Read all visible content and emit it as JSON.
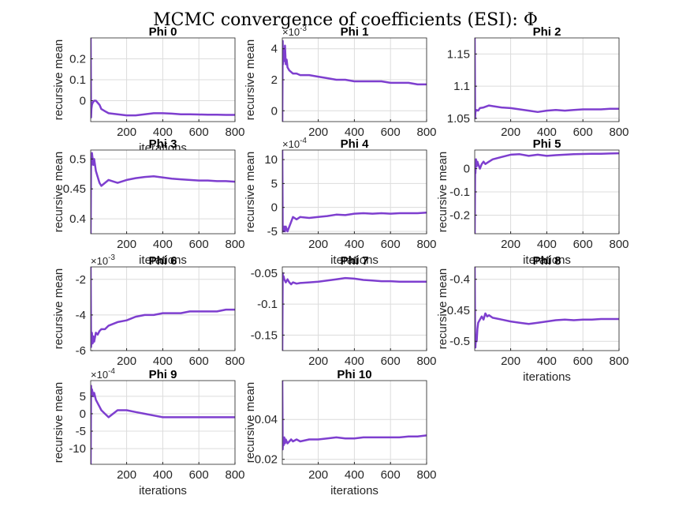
{
  "title": "MCMC convergence of coefficients (ESI): Φ",
  "series_color": "#7e3fcf",
  "chart_data": [
    {
      "type": "line",
      "title": "Phi 0",
      "xlabel": "iterations",
      "ylabel": "recursive mean",
      "xlim": [
        1,
        800
      ],
      "ylim": [
        -0.1,
        0.3
      ],
      "yticks": [
        0,
        0.1,
        0.2
      ],
      "ytick_labels": [
        "0",
        "0.1",
        "0.2"
      ],
      "xticks": [
        200,
        400,
        600,
        800
      ],
      "xtick_labels": [
        "200",
        "400",
        "600",
        "800"
      ],
      "exponent": "",
      "x": [
        1,
        3,
        5,
        8,
        12,
        20,
        30,
        50,
        60,
        80,
        100,
        150,
        200,
        250,
        300,
        350,
        400,
        450,
        500,
        550,
        600,
        650,
        700,
        750,
        800
      ],
      "y": [
        0.3,
        -0.08,
        -0.04,
        -0.02,
        -0.01,
        0.0,
        0.0,
        -0.02,
        -0.04,
        -0.05,
        -0.06,
        -0.065,
        -0.07,
        -0.07,
        -0.065,
        -0.06,
        -0.06,
        -0.062,
        -0.065,
        -0.065,
        -0.066,
        -0.067,
        -0.067,
        -0.068,
        -0.068
      ]
    },
    {
      "type": "line",
      "title": "Phi 1",
      "xlabel": "",
      "ylabel": "recursive mean",
      "xlim": [
        1,
        800
      ],
      "ylim": [
        -0.0007,
        0.0047
      ],
      "yticks": [
        0,
        0.002,
        0.004
      ],
      "ytick_labels": [
        "0",
        "2",
        "4"
      ],
      "xticks": [
        200,
        400,
        600,
        800
      ],
      "xtick_labels": [
        "200",
        "400",
        "600",
        "800"
      ],
      "exponent": "-3",
      "x": [
        1,
        3,
        5,
        8,
        12,
        16,
        20,
        25,
        30,
        40,
        50,
        60,
        80,
        100,
        150,
        200,
        250,
        300,
        350,
        400,
        450,
        500,
        550,
        600,
        650,
        700,
        750,
        800
      ],
      "y": [
        -0.0007,
        0.0045,
        0.003,
        0.004,
        0.0032,
        0.0042,
        0.003,
        0.0033,
        0.0028,
        0.0026,
        0.0025,
        0.0024,
        0.0024,
        0.0023,
        0.0023,
        0.0022,
        0.0021,
        0.002,
        0.002,
        0.0019,
        0.0019,
        0.0019,
        0.0019,
        0.0018,
        0.0018,
        0.0018,
        0.0017,
        0.0017
      ]
    },
    {
      "type": "line",
      "title": "Phi 2",
      "xlabel": "",
      "ylabel": "",
      "xlim": [
        1,
        800
      ],
      "ylim": [
        1.045,
        1.175
      ],
      "yticks": [
        1.05,
        1.1,
        1.15
      ],
      "ytick_labels": [
        "1.05",
        "1.1",
        "1.15"
      ],
      "xticks": [
        200,
        400,
        600,
        800
      ],
      "xtick_labels": [
        "200",
        "400",
        "600",
        "800"
      ],
      "exponent": "",
      "x": [
        1,
        3,
        5,
        10,
        20,
        30,
        50,
        80,
        100,
        150,
        200,
        250,
        300,
        350,
        400,
        450,
        500,
        550,
        600,
        650,
        700,
        750,
        800
      ],
      "y": [
        1.175,
        1.05,
        1.06,
        1.063,
        1.062,
        1.066,
        1.067,
        1.07,
        1.069,
        1.067,
        1.066,
        1.064,
        1.062,
        1.06,
        1.062,
        1.063,
        1.062,
        1.063,
        1.064,
        1.064,
        1.064,
        1.065,
        1.065
      ]
    },
    {
      "type": "line",
      "title": "Phi 3",
      "xlabel": "iterations",
      "ylabel": "recursive mean",
      "xlim": [
        1,
        800
      ],
      "ylim": [
        0.375,
        0.515
      ],
      "yticks": [
        0.4,
        0.45,
        0.5
      ],
      "ytick_labels": [
        "0.4",
        "0.45",
        "0.5"
      ],
      "xticks": [
        200,
        400,
        600,
        800
      ],
      "xtick_labels": [
        "200",
        "400",
        "600",
        "800"
      ],
      "exponent": "",
      "x": [
        1,
        3,
        5,
        8,
        12,
        16,
        20,
        30,
        40,
        50,
        60,
        80,
        100,
        150,
        200,
        250,
        300,
        350,
        400,
        450,
        500,
        550,
        600,
        650,
        700,
        750,
        800
      ],
      "y": [
        0.375,
        0.5,
        0.49,
        0.51,
        0.5,
        0.49,
        0.5,
        0.48,
        0.47,
        0.46,
        0.455,
        0.46,
        0.465,
        0.46,
        0.465,
        0.468,
        0.47,
        0.471,
        0.469,
        0.467,
        0.466,
        0.465,
        0.464,
        0.464,
        0.463,
        0.463,
        0.462
      ]
    },
    {
      "type": "line",
      "title": "Phi 4",
      "xlabel": "iterations",
      "ylabel": "recursive mean",
      "xlim": [
        1,
        800
      ],
      "ylim": [
        -0.00055,
        0.0012
      ],
      "yticks": [
        -0.0005,
        0,
        0.0005,
        0.001
      ],
      "ytick_labels": [
        "-5",
        "0",
        "5",
        "10"
      ],
      "xticks": [
        200,
        400,
        600,
        800
      ],
      "xtick_labels": [
        "200",
        "400",
        "600",
        "800"
      ],
      "exponent": "-4",
      "x": [
        1,
        3,
        5,
        8,
        12,
        16,
        20,
        30,
        40,
        50,
        60,
        80,
        100,
        150,
        200,
        250,
        300,
        350,
        400,
        450,
        500,
        550,
        600,
        650,
        700,
        750,
        800
      ],
      "y": [
        0.0012,
        -0.0005,
        -0.0004,
        -0.0005,
        -0.0004,
        -0.0005,
        -0.0004,
        -0.0005,
        -0.0004,
        -0.0003,
        -0.0002,
        -0.00025,
        -0.0002,
        -0.00022,
        -0.0002,
        -0.00018,
        -0.00015,
        -0.00016,
        -0.00013,
        -0.00012,
        -0.00013,
        -0.00012,
        -0.00013,
        -0.00012,
        -0.00012,
        -0.00012,
        -0.00011
      ]
    },
    {
      "type": "line",
      "title": "Phi 5",
      "xlabel": "iterations",
      "ylabel": "recursive mean",
      "xlim": [
        1,
        800
      ],
      "ylim": [
        -0.28,
        0.08
      ],
      "yticks": [
        -0.2,
        -0.1,
        0
      ],
      "ytick_labels": [
        "-0.2",
        "-0.1",
        "0"
      ],
      "xticks": [
        200,
        400,
        600,
        800
      ],
      "xtick_labels": [
        "200",
        "400",
        "600",
        "800"
      ],
      "exponent": "",
      "x": [
        1,
        3,
        5,
        8,
        12,
        16,
        20,
        30,
        40,
        50,
        60,
        80,
        100,
        150,
        200,
        250,
        300,
        350,
        400,
        450,
        500,
        550,
        600,
        650,
        700,
        750,
        800
      ],
      "y": [
        -0.28,
        0.0,
        -0.02,
        0.04,
        0.01,
        0.03,
        0.02,
        0.0,
        0.02,
        0.03,
        0.02,
        0.03,
        0.04,
        0.05,
        0.06,
        0.062,
        0.055,
        0.06,
        0.055,
        0.058,
        0.06,
        0.062,
        0.063,
        0.064,
        0.064,
        0.065,
        0.066
      ]
    },
    {
      "type": "line",
      "title": "Phi 6",
      "xlabel": "",
      "ylabel": "recursive mean",
      "xlim": [
        1,
        800
      ],
      "ylim": [
        -0.006,
        -0.0013
      ],
      "yticks": [
        -0.006,
        -0.004,
        -0.002
      ],
      "ytick_labels": [
        "-6",
        "-4",
        "-2"
      ],
      "xticks": [
        200,
        400,
        600,
        800
      ],
      "xtick_labels": [
        "200",
        "400",
        "600",
        "800"
      ],
      "exponent": "-3",
      "x": [
        1,
        3,
        5,
        8,
        12,
        16,
        20,
        30,
        40,
        50,
        60,
        80,
        100,
        150,
        200,
        250,
        300,
        350,
        400,
        450,
        500,
        550,
        600,
        650,
        700,
        750,
        800
      ],
      "y": [
        -0.0013,
        -0.0058,
        -0.0055,
        -0.005,
        -0.0056,
        -0.0052,
        -0.0055,
        -0.005,
        -0.0051,
        -0.0049,
        -0.0048,
        -0.0048,
        -0.0046,
        -0.0044,
        -0.0043,
        -0.0041,
        -0.004,
        -0.004,
        -0.0039,
        -0.0039,
        -0.0039,
        -0.0038,
        -0.0038,
        -0.0038,
        -0.0038,
        -0.0037,
        -0.0037
      ]
    },
    {
      "type": "line",
      "title": "Phi 7",
      "xlabel": "",
      "ylabel": "",
      "xlim": [
        1,
        800
      ],
      "ylim": [
        -0.175,
        -0.04
      ],
      "yticks": [
        -0.15,
        -0.1,
        -0.05
      ],
      "ytick_labels": [
        "-0.15",
        "-0.1",
        "-0.05"
      ],
      "xticks": [
        200,
        400,
        600,
        800
      ],
      "xtick_labels": [
        "200",
        "400",
        "600",
        "800"
      ],
      "exponent": "",
      "x": [
        1,
        3,
        5,
        8,
        12,
        20,
        30,
        40,
        50,
        60,
        80,
        100,
        150,
        200,
        250,
        300,
        350,
        400,
        450,
        500,
        550,
        600,
        650,
        700,
        750,
        800
      ],
      "y": [
        -0.175,
        -0.05,
        -0.06,
        -0.055,
        -0.06,
        -0.065,
        -0.06,
        -0.065,
        -0.068,
        -0.065,
        -0.067,
        -0.066,
        -0.065,
        -0.064,
        -0.062,
        -0.06,
        -0.058,
        -0.059,
        -0.061,
        -0.062,
        -0.063,
        -0.063,
        -0.064,
        -0.064,
        -0.064,
        -0.064
      ]
    },
    {
      "type": "line",
      "title": "Phi 8",
      "xlabel": "iterations",
      "ylabel": "recursive mean",
      "xlim": [
        1,
        800
      ],
      "ylim": [
        -0.515,
        -0.38
      ],
      "yticks": [
        -0.5,
        -0.45,
        -0.4
      ],
      "ytick_labels": [
        "-0.5",
        "-0.45",
        "-0.4"
      ],
      "xticks": [
        200,
        400,
        600,
        800
      ],
      "xtick_labels": [
        "200",
        "400",
        "600",
        "800"
      ],
      "exponent": "",
      "x": [
        1,
        3,
        5,
        8,
        12,
        16,
        20,
        30,
        40,
        50,
        60,
        70,
        80,
        100,
        150,
        200,
        250,
        300,
        350,
        400,
        450,
        500,
        550,
        600,
        650,
        700,
        750,
        800
      ],
      "y": [
        -0.38,
        -0.5,
        -0.51,
        -0.49,
        -0.5,
        -0.48,
        -0.47,
        -0.465,
        -0.46,
        -0.465,
        -0.455,
        -0.46,
        -0.458,
        -0.462,
        -0.465,
        -0.468,
        -0.47,
        -0.472,
        -0.47,
        -0.468,
        -0.466,
        -0.465,
        -0.466,
        -0.465,
        -0.465,
        -0.464,
        -0.464,
        -0.464
      ]
    },
    {
      "type": "line",
      "title": "Phi 9",
      "xlabel": "iterations",
      "ylabel": "recursive mean",
      "xlim": [
        1,
        800
      ],
      "ylim": [
        -0.00145,
        0.00095
      ],
      "yticks": [
        -0.001,
        -0.0005,
        0,
        0.0005
      ],
      "ytick_labels": [
        "-10",
        "-5",
        "0",
        "5"
      ],
      "xticks": [
        200,
        400,
        600,
        800
      ],
      "xtick_labels": [
        "200",
        "400",
        "600",
        "800"
      ],
      "exponent": "-4",
      "x": [
        1,
        3,
        5,
        8,
        12,
        16,
        20,
        30,
        40,
        50,
        60,
        80,
        100,
        150,
        200,
        250,
        300,
        350,
        400,
        450,
        500,
        550,
        600,
        650,
        700,
        750,
        800
      ],
      "y": [
        -0.00145,
        0.0008,
        0.0006,
        0.0007,
        0.0006,
        0.0005,
        0.0006,
        0.0004,
        0.0003,
        0.0002,
        0.0001,
        0.0,
        -0.0001,
        0.0001,
        0.0001,
        5e-05,
        0.0,
        -5e-05,
        -0.0001,
        -0.0001,
        -0.0001,
        -0.0001,
        -0.0001,
        -0.0001,
        -0.0001,
        -0.0001,
        -0.0001
      ]
    },
    {
      "type": "line",
      "title": "Phi 10",
      "xlabel": "iterations",
      "ylabel": "recursive mean",
      "xlim": [
        1,
        800
      ],
      "ylim": [
        0.0175,
        0.0595
      ],
      "yticks": [
        0.02,
        0.04
      ],
      "ytick_labels": [
        "0.02",
        "0.04"
      ],
      "xticks": [
        200,
        400,
        600,
        800
      ],
      "xtick_labels": [
        "200",
        "400",
        "600",
        "800"
      ],
      "exponent": "",
      "x": [
        1,
        3,
        5,
        8,
        12,
        16,
        20,
        30,
        40,
        50,
        60,
        80,
        100,
        150,
        200,
        250,
        300,
        350,
        400,
        450,
        500,
        550,
        600,
        650,
        700,
        750,
        800
      ],
      "y": [
        0.0595,
        0.025,
        0.03,
        0.027,
        0.031,
        0.028,
        0.03,
        0.028,
        0.029,
        0.03,
        0.029,
        0.03,
        0.029,
        0.03,
        0.03,
        0.0305,
        0.031,
        0.0305,
        0.0305,
        0.031,
        0.031,
        0.031,
        0.031,
        0.031,
        0.0315,
        0.0315,
        0.032
      ]
    }
  ]
}
